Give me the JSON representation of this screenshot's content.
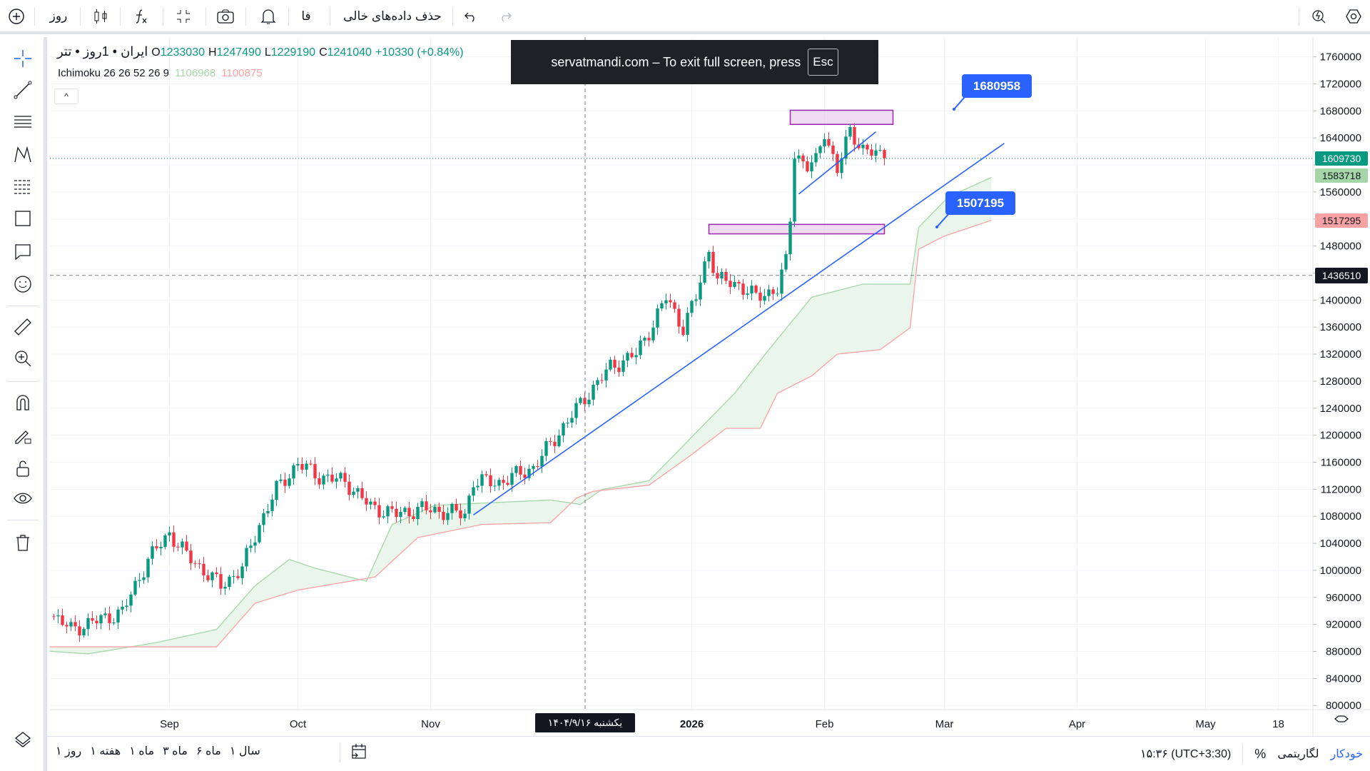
{
  "toolbar": {
    "add_symbol_icon": "plus-circle-icon",
    "interval": "روز",
    "chart_type_icon": "candles-icon",
    "indicators_icon": "fx-icon",
    "fullscreen_icon": "exit-fullscreen-icon",
    "snapshot_icon": "camera-icon",
    "alert_icon": "bell-icon",
    "language": "فا",
    "remove_empty": "حذف داده‌های خالی",
    "undo_icon": "undo-icon",
    "redo_icon": "redo-icon",
    "quick_search_icon": "lightning-search-icon",
    "settings_icon": "gear-icon"
  },
  "legend": {
    "symbol": "ایران • 1روز • تتر",
    "o_label": "O",
    "o": "1233030",
    "h_label": "H",
    "h": "1247490",
    "l_label": "L",
    "l": "1229190",
    "c_label": "C",
    "c": "1241040",
    "change": "+10330 (+0.84%)",
    "indicator": "Ichimoku 26 26 52 26 9",
    "ind_val1": "1106968",
    "ind_val2": "1100875",
    "collapse": "^"
  },
  "fullscreen_notice": {
    "text": "servatmandi.com – To exit full screen, press",
    "key": "Esc"
  },
  "price_labels": {
    "last": "1609730",
    "span_a": "1583718",
    "span_b": "1517295",
    "crosshair": "1436510"
  },
  "callouts": {
    "top": "1680958",
    "bottom": "1507195"
  },
  "crosshair_date": "یکشنبه ۱۴۰۴/۹/۱۶",
  "bottom": {
    "periods": [
      "۱ روز",
      "۱ هفته",
      "۱ ماه",
      "۳ ماه",
      "۶ ماه",
      "۱ سال"
    ],
    "time": "۱۵:۳۶ (UTC+3:30)",
    "percent": "%",
    "log": "لگاریتمی",
    "auto": "خودکار"
  },
  "colors": {
    "up": "#089981",
    "down": "#f23645",
    "accent": "#2962ff",
    "span_a": "#a5d6a7",
    "span_b": "#faa1a4",
    "box": "#9c27b0"
  },
  "chart_data": {
    "type": "candlestick",
    "yticks": [
      1760000,
      1720000,
      1680000,
      1640000,
      1600000,
      1560000,
      1520000,
      1480000,
      1440000,
      1400000,
      1360000,
      1320000,
      1280000,
      1240000,
      1200000,
      1160000,
      1120000,
      1080000,
      1040000,
      1000000,
      960000,
      920000,
      880000,
      840000,
      800000
    ],
    "ylim": [
      800000,
      1760000
    ],
    "xticks": [
      {
        "label": "Sep",
        "day": 31
      },
      {
        "label": "Oct",
        "day": 61
      },
      {
        "label": "Nov",
        "day": 92
      },
      {
        "label": "2026",
        "day": 153
      },
      {
        "label": "Feb",
        "day": 184
      },
      {
        "label": "Mar",
        "day": 212
      },
      {
        "label": "Apr",
        "day": 243
      },
      {
        "label": "May",
        "day": 273
      },
      {
        "label": "18",
        "day": 290
      }
    ],
    "day_origin": "2025-08-01",
    "close_keypoints": [
      [
        4,
        932000
      ],
      [
        8,
        912700
      ],
      [
        20,
        938000
      ],
      [
        26,
        1016000
      ],
      [
        31,
        1055000
      ],
      [
        35,
        1022600
      ],
      [
        43,
        977000
      ],
      [
        48,
        1003000
      ],
      [
        52,
        1068000
      ],
      [
        56,
        1120000
      ],
      [
        61,
        1158000
      ],
      [
        66,
        1139000
      ],
      [
        72,
        1132000
      ],
      [
        78,
        1094000
      ],
      [
        84,
        1083000
      ],
      [
        90,
        1091000
      ],
      [
        100,
        1083000
      ],
      [
        102,
        1132000
      ],
      [
        108,
        1130000
      ],
      [
        116,
        1152000
      ],
      [
        122,
        1204000
      ],
      [
        128,
        1255000
      ],
      [
        134,
        1301000
      ],
      [
        140,
        1320000
      ],
      [
        144,
        1365000
      ],
      [
        147,
        1404000
      ],
      [
        151,
        1359000
      ],
      [
        154,
        1404000
      ],
      [
        157,
        1475000
      ],
      [
        159,
        1430000
      ],
      [
        164,
        1423000
      ],
      [
        168,
        1404000
      ],
      [
        173,
        1417000
      ],
      [
        175,
        1456000
      ],
      [
        176,
        1521000
      ],
      [
        177,
        1618000
      ],
      [
        180,
        1598000
      ],
      [
        182,
        1604000
      ],
      [
        184,
        1650000
      ],
      [
        187,
        1592000
      ],
      [
        190,
        1650000
      ],
      [
        193,
        1624000
      ],
      [
        198,
        1609730
      ]
    ],
    "ichimoku_span_a": [
      [
        3,
        880300
      ],
      [
        12,
        876400
      ],
      [
        28,
        893200
      ],
      [
        42,
        912600
      ],
      [
        51,
        977300
      ],
      [
        59,
        1016100
      ],
      [
        65,
        1003200
      ],
      [
        77,
        983800
      ],
      [
        83,
        1067900
      ],
      [
        93,
        1096300
      ],
      [
        120,
        1104100
      ],
      [
        127,
        1097600
      ],
      [
        132,
        1119600
      ],
      [
        143,
        1132600
      ],
      [
        153,
        1197300
      ],
      [
        163,
        1262000
      ],
      [
        171,
        1326600
      ],
      [
        181,
        1404200
      ],
      [
        193,
        1423600
      ],
      [
        204,
        1423600
      ],
      [
        206,
        1507700
      ],
      [
        213,
        1553000
      ],
      [
        223,
        1581500
      ]
    ],
    "ichimoku_span_b": [
      [
        3,
        886800
      ],
      [
        28,
        886800
      ],
      [
        42,
        886800
      ],
      [
        51,
        951400
      ],
      [
        61,
        970800
      ],
      [
        79,
        990200
      ],
      [
        89,
        1048500
      ],
      [
        104,
        1067900
      ],
      [
        120,
        1070500
      ],
      [
        126,
        1106700
      ],
      [
        130,
        1117000
      ],
      [
        143,
        1126100
      ],
      [
        153,
        1171400
      ],
      [
        161,
        1210200
      ],
      [
        169,
        1210200
      ],
      [
        173,
        1262000
      ],
      [
        181,
        1287800
      ],
      [
        187,
        1320100
      ],
      [
        197,
        1326600
      ],
      [
        204,
        1359000
      ],
      [
        206,
        1475400
      ],
      [
        212,
        1494800
      ],
      [
        223,
        1518100
      ]
    ],
    "last_price": 1609730,
    "crosshair_price": 1436510,
    "crosshair_day": 137,
    "rectangles": [
      {
        "top": 1680958,
        "bottom": 1660000,
        "from_day": 176,
        "to_day": 200
      },
      {
        "top": 1512000,
        "bottom": 1498000,
        "from_day": 157,
        "to_day": 198
      }
    ],
    "trendlines": [
      [
        [
          102,
          1082000
        ],
        [
          226,
          1632000
        ]
      ],
      [
        [
          178,
          1557000
        ],
        [
          196,
          1649000
        ]
      ]
    ]
  }
}
